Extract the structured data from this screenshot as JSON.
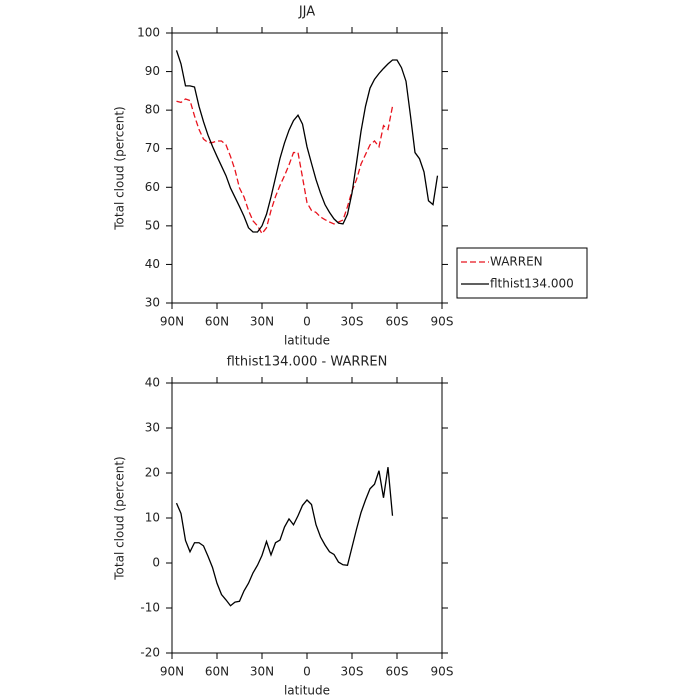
{
  "chart_data": [
    {
      "type": "line",
      "title": "JJA",
      "xlabel": "latitude",
      "ylabel": "Total cloud (percent)",
      "x": [
        87,
        84,
        81,
        78,
        75,
        72,
        69,
        66,
        63,
        60,
        57,
        54,
        51,
        48,
        45,
        42,
        39,
        36,
        33,
        30,
        27,
        24,
        21,
        18,
        15,
        12,
        9,
        6,
        3,
        0,
        -3,
        -6,
        -9,
        -12,
        -15,
        -18,
        -21,
        -24,
        -27,
        -30,
        -33,
        -36,
        -39,
        -42,
        -45,
        -48,
        -51,
        -54,
        -57,
        -60,
        -63,
        -66,
        -69,
        -72,
        -75,
        -78,
        -81,
        -84,
        -87
      ],
      "xlim": [
        90,
        -90
      ],
      "xticks": [
        {
          "value": 90,
          "label": "90N"
        },
        {
          "value": 60,
          "label": "60N"
        },
        {
          "value": 30,
          "label": "30N"
        },
        0,
        {
          "value": -30,
          "label": "30S"
        },
        {
          "value": -60,
          "label": "60S"
        },
        {
          "value": -90,
          "label": "90S"
        }
      ],
      "ylim": [
        30,
        100
      ],
      "yticks": [
        30,
        40,
        50,
        60,
        70,
        80,
        90,
        100
      ],
      "legend": "outside right",
      "series": [
        {
          "name": "WARREN",
          "color": "#e8141e",
          "linestyle": "dashed",
          "values": [
            82.3,
            82,
            82.9,
            82.5,
            78.5,
            75,
            72.5,
            71.6,
            71.6,
            72,
            72,
            71,
            68,
            64.5,
            59.8,
            57.5,
            54,
            51.3,
            50,
            48,
            49.5,
            54,
            57.6,
            60.5,
            63,
            65.8,
            69,
            69,
            62.6,
            56,
            54,
            53.5,
            52.3,
            51.6,
            51,
            50.5,
            51,
            51.5,
            55,
            59,
            62,
            66,
            68.5,
            71,
            72,
            70.5,
            76,
            75,
            81,
            null,
            null,
            null,
            null,
            null,
            null,
            null,
            null,
            null,
            null
          ]
        },
        {
          "name": "flthist134.000",
          "color": "#000000",
          "linestyle": "solid",
          "values": [
            95.5,
            92,
            86.3,
            86.3,
            86,
            81,
            77,
            73.5,
            70.6,
            68,
            65.5,
            63,
            59.8,
            57.4,
            55,
            52.5,
            49.5,
            48.4,
            48.4,
            50,
            53,
            57.5,
            62.5,
            67.5,
            71.5,
            74.8,
            77.3,
            78.7,
            76.4,
            70.5,
            66.2,
            62,
            58.5,
            55.5,
            53.5,
            51.8,
            50.7,
            50.5,
            53,
            58.5,
            66.3,
            74.5,
            81,
            85.7,
            88,
            89.5,
            90.8,
            92,
            93,
            93,
            91,
            87.5,
            78.5,
            69,
            67.4,
            64,
            56.5,
            55.5,
            63
          ]
        }
      ]
    },
    {
      "type": "line",
      "title": "flthist134.000 - WARREN",
      "xlabel": "latitude",
      "ylabel": "Total cloud (percent)",
      "x": [
        87,
        84,
        81,
        78,
        75,
        72,
        69,
        66,
        63,
        60,
        57,
        54,
        51,
        48,
        45,
        42,
        39,
        36,
        33,
        30,
        27,
        24,
        21,
        18,
        15,
        12,
        9,
        6,
        3,
        0,
        -3,
        -6,
        -9,
        -12,
        -15,
        -18,
        -21,
        -24,
        -27,
        -30,
        -33,
        -36,
        -39,
        -42,
        -45,
        -48,
        -51,
        -54,
        -57,
        -60,
        -63,
        -66,
        -69,
        -72,
        -75,
        -78,
        -81,
        -84,
        -87
      ],
      "xlim": [
        90,
        -90
      ],
      "xticks": [
        {
          "value": 90,
          "label": "90N"
        },
        {
          "value": 60,
          "label": "60N"
        },
        {
          "value": 30,
          "label": "30N"
        },
        0,
        {
          "value": -30,
          "label": "30S"
        },
        {
          "value": -60,
          "label": "60S"
        },
        {
          "value": -90,
          "label": "90S"
        }
      ],
      "ylim": [
        -20,
        40
      ],
      "yticks": [
        -20,
        -10,
        0,
        10,
        20,
        30,
        40
      ],
      "series": [
        {
          "color": "#000000",
          "linestyle": "solid",
          "values": [
            13.3,
            11,
            5,
            2.5,
            4.5,
            4.5,
            3.8,
            1.5,
            -1,
            -4.5,
            -7,
            -8.2,
            -9.5,
            -8.7,
            -8.5,
            -6.2,
            -4.5,
            -2.2,
            -0.5,
            1.7,
            4.8,
            1.8,
            4.5,
            5.1,
            8,
            9.8,
            8.5,
            10.5,
            12.8,
            14,
            13,
            8.5,
            5.8,
            4,
            2.5,
            1.9,
            0.2,
            -0.4,
            -0.5,
            3.5,
            7.5,
            11.2,
            14,
            16.5,
            17.5,
            20.5,
            14.5,
            21.3,
            10.5,
            null,
            null,
            null,
            null,
            null,
            null,
            null,
            null,
            null,
            null
          ]
        }
      ]
    }
  ]
}
